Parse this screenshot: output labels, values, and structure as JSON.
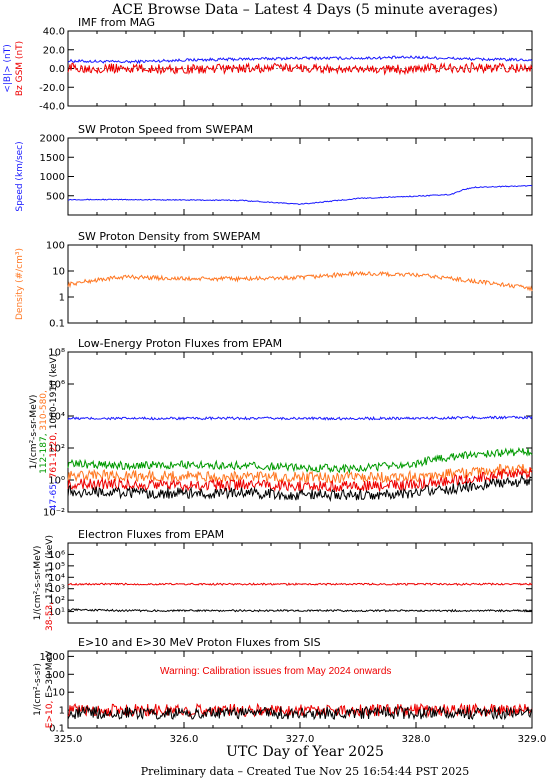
{
  "title": "ACE Browse Data  –  Latest 4 Days (5 minute averages)",
  "xlabel": "UTC Day of Year 2025",
  "footer": "Preliminary data – Created Tue Nov 25 16:54:44 PST 2025",
  "x_ticks": [
    "325.0",
    "326.0",
    "327.0",
    "328.0",
    "329.0"
  ],
  "colors": {
    "blue": "#1a1aff",
    "red": "#ee0000",
    "orange": "#ff7722",
    "green": "#009a00",
    "black": "#000000"
  },
  "chart_data": [
    {
      "type": "line",
      "title": "IMF from MAG",
      "ylabel_parts": [
        {
          "text": "<|B|> (nT)",
          "color": "#1a1aff"
        },
        {
          "text": "Bz GSM (nT)",
          "color": "#ee0000"
        }
      ],
      "scale": "linear",
      "ylim": [
        -40,
        40
      ],
      "y_ticks": [
        "40.0",
        "20.0",
        "0.0",
        "-20.0",
        "-40.0"
      ],
      "x": [
        325.0,
        325.5,
        326.0,
        326.5,
        327.0,
        327.5,
        328.0,
        328.5,
        329.0
      ],
      "series": [
        {
          "color": "#1a1aff",
          "values": [
            8,
            7,
            9,
            10,
            11,
            11,
            12,
            10,
            9
          ]
        },
        {
          "color": "#ee0000",
          "values": [
            1,
            0,
            -1,
            0,
            1,
            -2,
            0,
            1,
            0
          ]
        }
      ]
    },
    {
      "type": "line",
      "title": "SW Proton Speed from SWEPAM",
      "ylabel_parts": [
        {
          "text": "Speed (km/sec)",
          "color": "#1a1aff"
        }
      ],
      "scale": "linear",
      "ylim": [
        0,
        2000
      ],
      "y_ticks": [
        "2000",
        "1500",
        "1000",
        "500"
      ],
      "x": [
        325.0,
        325.5,
        326.0,
        326.5,
        327.0,
        327.5,
        328.0,
        328.3,
        328.4,
        328.5,
        329.0
      ],
      "series": [
        {
          "color": "#1a1aff",
          "values": [
            400,
            400,
            390,
            380,
            280,
            430,
            490,
            530,
            650,
            720,
            760
          ]
        }
      ]
    },
    {
      "type": "line",
      "title": "SW Proton Density from SWEPAM",
      "ylabel_parts": [
        {
          "text": "Density (#/cm³)",
          "color": "#ff7722"
        }
      ],
      "scale": "log",
      "ylim": [
        0.1,
        100
      ],
      "y_ticks": [
        "100",
        "10",
        "1",
        "0.1"
      ],
      "x": [
        325.0,
        325.5,
        326.0,
        326.5,
        327.0,
        327.5,
        328.0,
        328.5,
        329.0
      ],
      "series": [
        {
          "color": "#ff7722",
          "values": [
            3,
            6,
            5,
            5,
            5.5,
            8,
            7,
            4,
            2
          ]
        }
      ]
    },
    {
      "type": "line",
      "title": "Low-Energy Proton Fluxes from EPAM",
      "ylabel_parts": [
        {
          "text": "47-65,",
          "color": "#1a1aff"
        },
        {
          "text": "761-1220,",
          "color": "#ee0000"
        },
        {
          "text": "112-187,",
          "color": "#009a00"
        },
        {
          "text": "310-580,",
          "color": "#ff7722"
        },
        {
          "text": "1060-1910 (keV)",
          "color": "#000000"
        },
        {
          "text": "1/(cm²-s-sr-MeV)",
          "color": "#000000"
        }
      ],
      "scale": "log",
      "ylim": [
        0.01,
        100000000
      ],
      "y_ticks": [
        "10⁸",
        "10⁶",
        "10⁴",
        "10²",
        "10⁰",
        "10⁻²"
      ],
      "x": [
        325.0,
        325.5,
        326.0,
        326.5,
        327.0,
        327.5,
        328.0,
        328.5,
        329.0
      ],
      "series": [
        {
          "color": "#1a1aff",
          "values": [
            7000,
            7000,
            7000,
            7200,
            7000,
            7000,
            7200,
            8000,
            8000
          ]
        },
        {
          "color": "#009a00",
          "values": [
            10,
            8,
            9,
            8,
            6,
            5,
            10,
            40,
            60
          ]
        },
        {
          "color": "#ff7722",
          "values": [
            2,
            1.8,
            1.7,
            1.6,
            1.5,
            1.4,
            1.6,
            3,
            6
          ]
        },
        {
          "color": "#ee0000",
          "values": [
            0.6,
            0.5,
            0.5,
            0.5,
            0.4,
            0.4,
            0.5,
            1.2,
            3
          ]
        },
        {
          "color": "#000000",
          "values": [
            0.2,
            0.15,
            0.15,
            0.15,
            0.12,
            0.12,
            0.15,
            0.4,
            1
          ]
        }
      ]
    },
    {
      "type": "line",
      "title": "Electron Fluxes from EPAM",
      "ylabel_parts": [
        {
          "text": "38-53,",
          "color": "#ee0000"
        },
        {
          "text": "175-315 (keV)",
          "color": "#000000"
        },
        {
          "text": "1/(cm²-s-sr-MeV)",
          "color": "#000000"
        }
      ],
      "scale": "log",
      "ylim": [
        1,
        10000000
      ],
      "y_ticks": [
        "10⁶",
        "10⁵",
        "10⁴",
        "10³",
        "10²",
        "10¹"
      ],
      "x": [
        325.0,
        325.5,
        326.0,
        326.5,
        327.0,
        327.5,
        328.0,
        328.5,
        329.0
      ],
      "series": [
        {
          "color": "#ee0000",
          "values": [
            2500,
            2500,
            2500,
            2500,
            2500,
            2500,
            2500,
            2500,
            2500
          ]
        },
        {
          "color": "#000000",
          "values": [
            15,
            12,
            12,
            12,
            12,
            12,
            12,
            12,
            12
          ]
        }
      ]
    },
    {
      "type": "line",
      "title": "E>10 and E>30 MeV Proton Fluxes from SIS",
      "annotation": "Warning: Calibration issues from May 2024 onwards",
      "ylabel_parts": [
        {
          "text": "E>10,",
          "color": "#ee0000"
        },
        {
          "text": "E>30 MeV",
          "color": "#000000"
        },
        {
          "text": "1/(cm²-s-sr)",
          "color": "#000000"
        }
      ],
      "scale": "log",
      "ylim": [
        0.1,
        2000
      ],
      "y_ticks": [
        "1000",
        "100",
        "10",
        "1",
        "0.1"
      ],
      "x": [
        325.0,
        325.5,
        326.0,
        326.5,
        327.0,
        327.5,
        328.0,
        328.5,
        329.0
      ],
      "series": [
        {
          "color": "#ee0000",
          "values": [
            1,
            1,
            1,
            1,
            1,
            1,
            1,
            1,
            1
          ]
        },
        {
          "color": "#000000",
          "values": [
            0.7,
            0.7,
            0.7,
            0.7,
            0.7,
            0.7,
            0.7,
            0.7,
            0.7
          ]
        }
      ]
    }
  ]
}
